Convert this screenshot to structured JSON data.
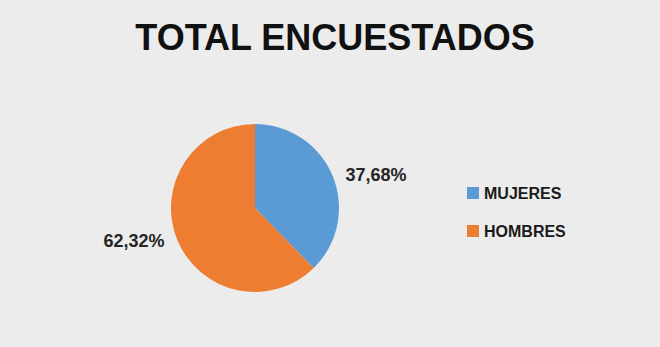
{
  "chart_data": {
    "type": "pie",
    "title": "TOTAL ENCUESTADOS",
    "categories": [
      "MUJERES",
      "HOMBRES"
    ],
    "values": [
      37.68,
      62.32
    ],
    "value_labels": [
      "37,68%",
      "62,32%"
    ],
    "colors": [
      "#5b9bd5",
      "#ed7d31"
    ],
    "legend": "right",
    "data_labels": true
  }
}
